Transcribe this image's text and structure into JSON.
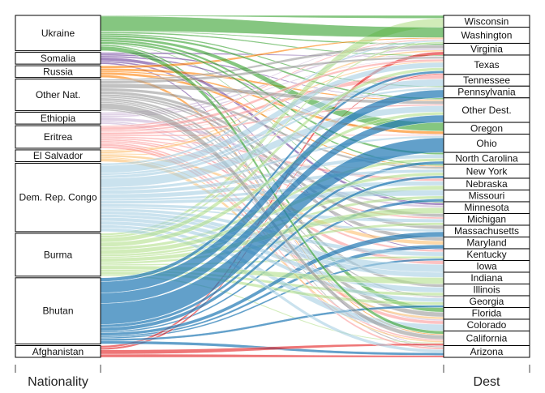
{
  "chart_data": {
    "type": "alluvial",
    "axes": [
      "Nationality",
      "Dest"
    ],
    "sources": [
      "Ukraine",
      "Somalia",
      "Russia",
      "Other Nat.",
      "Ethiopia",
      "Eritrea",
      "El Salvador",
      "Dem. Rep. Congo",
      "Burma",
      "Bhutan",
      "Afghanistan"
    ],
    "destinations": [
      "Wisconsin",
      "Washington",
      "Virginia",
      "Texas",
      "Tennessee",
      "Pennsylvania",
      "Other Dest.",
      "Oregon",
      "Ohio",
      "North Carolina",
      "New York",
      "Nebraska",
      "Missouri",
      "Minnesota",
      "Michigan",
      "Massachusetts",
      "Maryland",
      "Kentucky",
      "Iowa",
      "Indiana",
      "Illinois",
      "Georgia",
      "Florida",
      "Colorado",
      "California",
      "Arizona"
    ],
    "colors": {
      "Ukraine": "#33a02c",
      "Somalia": "#6a3d9a",
      "Russia": "#ff7f00",
      "Other Nat.": "#999999",
      "Ethiopia": "#cab2d6",
      "Eritrea": "#fb9a99",
      "El Salvador": "#fdbf6f",
      "Dem. Rep. Congo": "#a6cee3",
      "Burma": "#b2df8a",
      "Bhutan": "#1f78b4",
      "Afghanistan": "#e31a1c"
    },
    "flows": [
      [
        "Ukraine",
        "Washington",
        20
      ],
      [
        "Ukraine",
        "California",
        6
      ],
      [
        "Ukraine",
        "Oregon",
        3
      ],
      [
        "Ukraine",
        "Texas",
        2
      ],
      [
        "Ukraine",
        "Pennsylvania",
        2
      ],
      [
        "Ukraine",
        "New York",
        3
      ],
      [
        "Ukraine",
        "North Carolina",
        3
      ],
      [
        "Ukraine",
        "Other Dest.",
        3
      ],
      [
        "Ukraine",
        "Florida",
        2
      ],
      [
        "Ukraine",
        "Wisconsin",
        1
      ],
      [
        "Ukraine",
        "Virginia",
        1
      ],
      [
        "Ukraine",
        "Minnesota",
        1
      ],
      [
        "Somalia",
        "Minnesota",
        2
      ],
      [
        "Somalia",
        "Ohio",
        1
      ],
      [
        "Somalia",
        "Arizona",
        1
      ],
      [
        "Somalia",
        "Texas",
        1
      ],
      [
        "Somalia",
        "Kentucky",
        1
      ],
      [
        "Somalia",
        "Other Dest.",
        1
      ],
      [
        "Russia",
        "Washington",
        2
      ],
      [
        "Russia",
        "California",
        2
      ],
      [
        "Russia",
        "New York",
        2
      ],
      [
        "Russia",
        "Oregon",
        1
      ],
      [
        "Russia",
        "Other Dest.",
        2
      ],
      [
        "Other Nat.",
        "California",
        8
      ],
      [
        "Other Nat.",
        "Texas",
        4
      ],
      [
        "Other Nat.",
        "Virginia",
        2
      ],
      [
        "Other Nat.",
        "Other Dest.",
        6
      ],
      [
        "Other Nat.",
        "New York",
        4
      ],
      [
        "Other Nat.",
        "Illinois",
        3
      ],
      [
        "Other Nat.",
        "Georgia",
        2
      ],
      [
        "Other Nat.",
        "Michigan",
        4
      ],
      [
        "Other Nat.",
        "Florida",
        2
      ],
      [
        "Other Nat.",
        "Maryland",
        2
      ],
      [
        "Other Nat.",
        "Arizona",
        2
      ],
      [
        "Other Nat.",
        "Massachusetts",
        3
      ],
      [
        "Ethiopia",
        "Minnesota",
        2
      ],
      [
        "Ethiopia",
        "Texas",
        1
      ],
      [
        "Ethiopia",
        "Washington",
        1
      ],
      [
        "Ethiopia",
        "Georgia",
        1
      ],
      [
        "Ethiopia",
        "Virginia",
        1
      ],
      [
        "Ethiopia",
        "Colorado",
        1
      ],
      [
        "Eritrea",
        "Texas",
        4
      ],
      [
        "Eritrea",
        "Other Dest.",
        3
      ],
      [
        "Eritrea",
        "California",
        3
      ],
      [
        "Eritrea",
        "Ohio",
        2
      ],
      [
        "Eritrea",
        "Michigan",
        2
      ],
      [
        "Eritrea",
        "Arizona",
        3
      ],
      [
        "Eritrea",
        "Washington",
        2
      ],
      [
        "Eritrea",
        "Nebraska",
        2
      ],
      [
        "Eritrea",
        "Iowa",
        2
      ],
      [
        "Eritrea",
        "Kentucky",
        2
      ],
      [
        "Eritrea",
        "Colorado",
        2
      ],
      [
        "Eritrea",
        "Pennsylvania",
        1
      ],
      [
        "Eritrea",
        "Tennessee",
        2
      ],
      [
        "El Salvador",
        "California",
        3
      ],
      [
        "El Salvador",
        "Texas",
        2
      ],
      [
        "El Salvador",
        "New York",
        1
      ],
      [
        "El Salvador",
        "Maryland",
        2
      ],
      [
        "El Salvador",
        "Virginia",
        1
      ],
      [
        "El Salvador",
        "Florida",
        1
      ],
      [
        "Dem. Rep. Congo",
        "Texas",
        10
      ],
      [
        "Dem. Rep. Congo",
        "Other Dest.",
        12
      ],
      [
        "Dem. Rep. Congo",
        "Arizona",
        5
      ],
      [
        "Dem. Rep. Congo",
        "Ohio",
        4
      ],
      [
        "Dem. Rep. Congo",
        "North Carolina",
        5
      ],
      [
        "Dem. Rep. Congo",
        "New York",
        6
      ],
      [
        "Dem. Rep. Congo",
        "Washington",
        3
      ],
      [
        "Dem. Rep. Congo",
        "Kentucky",
        4
      ],
      [
        "Dem. Rep. Congo",
        "Indiana",
        4
      ],
      [
        "Dem. Rep. Congo",
        "Illinois",
        5
      ],
      [
        "Dem. Rep. Congo",
        "Georgia",
        5
      ],
      [
        "Dem. Rep. Congo",
        "Michigan",
        4
      ],
      [
        "Dem. Rep. Congo",
        "Missouri",
        4
      ],
      [
        "Dem. Rep. Congo",
        "Iowa",
        4
      ],
      [
        "Dem. Rep. Congo",
        "Pennsylvania",
        4
      ],
      [
        "Dem. Rep. Congo",
        "Nebraska",
        3
      ],
      [
        "Dem. Rep. Congo",
        "Tennessee",
        3
      ],
      [
        "Dem. Rep. Congo",
        "Massachusetts",
        2
      ],
      [
        "Dem. Rep. Congo",
        "Colorado",
        4
      ],
      [
        "Burma",
        "Texas",
        6
      ],
      [
        "Burma",
        "Other Dest.",
        6
      ],
      [
        "Burma",
        "Indiana",
        5
      ],
      [
        "Burma",
        "New York",
        6
      ],
      [
        "Burma",
        "North Carolina",
        4
      ],
      [
        "Burma",
        "Minnesota",
        5
      ],
      [
        "Burma",
        "Georgia",
        4
      ],
      [
        "Burma",
        "Michigan",
        3
      ],
      [
        "Burma",
        "Nebraska",
        3
      ],
      [
        "Burma",
        "Kentucky",
        2
      ],
      [
        "Burma",
        "Illinois",
        3
      ],
      [
        "Burma",
        "Wisconsin",
        3
      ],
      [
        "Burma",
        "California",
        2
      ],
      [
        "Burma",
        "Missouri",
        2
      ],
      [
        "Burma",
        "Washington",
        3
      ],
      [
        "Bhutan",
        "Ohio",
        28
      ],
      [
        "Bhutan",
        "Pennsylvania",
        15
      ],
      [
        "Bhutan",
        "Other Dest.",
        14
      ],
      [
        "Bhutan",
        "Texas",
        5
      ],
      [
        "Bhutan",
        "New York",
        5
      ],
      [
        "Bhutan",
        "Georgia",
        3
      ],
      [
        "Bhutan",
        "Massachusetts",
        4
      ],
      [
        "Bhutan",
        "Arizona",
        4
      ],
      [
        "Bhutan",
        "North Carolina",
        4
      ],
      [
        "Bhutan",
        "Kentucky",
        2
      ],
      [
        "Bhutan",
        "Missouri",
        2
      ],
      [
        "Bhutan",
        "Maryland",
        2
      ],
      [
        "Afghanistan",
        "Arizona",
        3
      ],
      [
        "Afghanistan",
        "California",
        4
      ],
      [
        "Afghanistan",
        "Texas",
        2
      ],
      [
        "Afghanistan",
        "Virginia",
        2
      ]
    ]
  }
}
